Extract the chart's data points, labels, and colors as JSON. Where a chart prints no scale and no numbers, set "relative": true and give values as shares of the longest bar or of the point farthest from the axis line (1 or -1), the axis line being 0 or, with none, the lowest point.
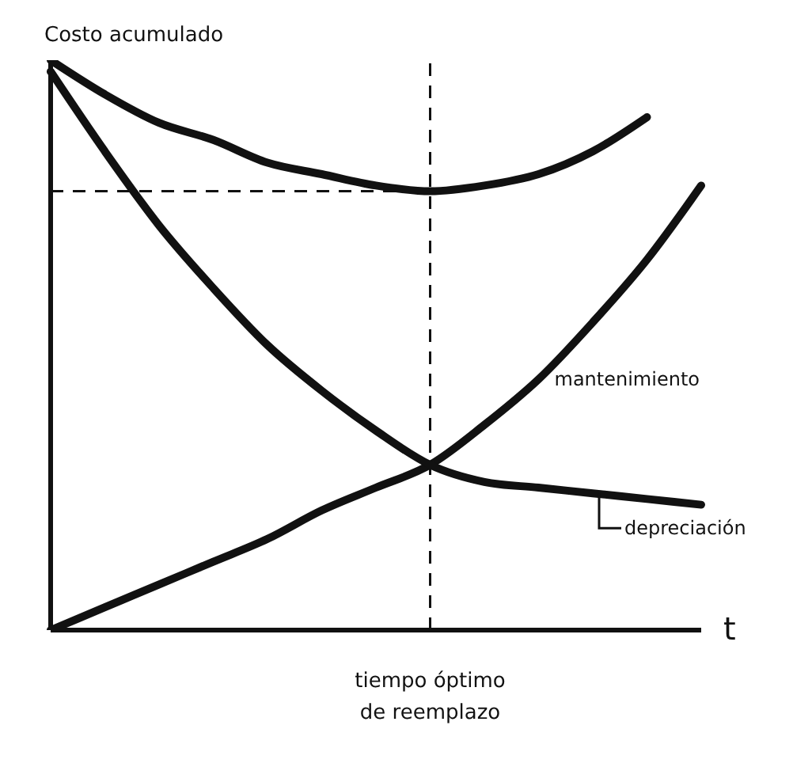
{
  "chart_data": {
    "type": "line",
    "relative": true,
    "ylabel": "Costo acumulado",
    "xlabel": "t",
    "categories": [
      null,
      null,
      null,
      null,
      null,
      null,
      null,
      null,
      null,
      null,
      null,
      null,
      null
    ],
    "series": [
      {
        "color": "#111111",
        "values": [
          1,
          0.94,
          0.89,
          0.86,
          0.82,
          0.8,
          0.78,
          0.77,
          0.78,
          0.8,
          0.84,
          0.9,
          null
        ]
      },
      {
        "name": "mantenimiento",
        "color": "#111111",
        "values": [
          0,
          0.04,
          0.08,
          0.12,
          0.16,
          0.21,
          0.25,
          0.29,
          0.36,
          0.44,
          0.54,
          0.65,
          0.78
        ]
      },
      {
        "name": "depreciación",
        "color": "#111111",
        "values": [
          0.98,
          0.84,
          0.71,
          0.6,
          0.5,
          0.42,
          0.35,
          0.29,
          0.26,
          0.25,
          0.24,
          0.23,
          0.22
        ]
      }
    ],
    "annotations": [
      "tiempo óptimo de reemplazo"
    ],
    "ref_lines": [
      {
        "axis": "y",
        "value": 0.77,
        "line_style": "dashed",
        "color": "#111111"
      }
    ],
    "grid": false,
    "legend": false,
    "marker": "none",
    "line_style": "solid"
  }
}
